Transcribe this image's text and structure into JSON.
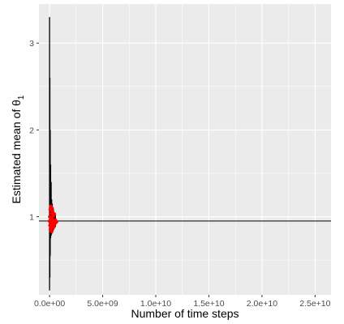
{
  "chart_data": {
    "type": "scatter",
    "title": "",
    "xlabel": "Number of time steps",
    "ylabel_main": "Estimated mean of θ",
    "ylabel_sub": "1",
    "xlim": [
      -1000000000,
      26500000000
    ],
    "ylim": [
      0.1,
      3.45
    ],
    "x_ticks": [
      0,
      5000000000,
      10000000000,
      15000000000,
      20000000000,
      25000000000
    ],
    "x_tick_labels": [
      "0.0e+00",
      "5.0e+09",
      "1.0e+10",
      "1.5e+10",
      "2.0e+10",
      "2.5e+10"
    ],
    "y_ticks": [
      1,
      2,
      3
    ],
    "y_tick_labels": [
      "1",
      "2",
      "3"
    ],
    "reference_line_y": 0.95,
    "grid": true,
    "legend": "none",
    "colors": {
      "panel": "#ebebeb",
      "grid_major": "#ffffff",
      "points": "#ff0000",
      "error_bars": "#000000",
      "reference_line": "#000000",
      "axis_text": "#4d4d4d"
    },
    "error_bars": [
      {
        "x": 0,
        "lo": 0.15,
        "hi": 3.3
      },
      {
        "x": 30000000,
        "lo": 0.3,
        "hi": 2.6
      },
      {
        "x": 60000000,
        "lo": 0.55,
        "hi": 2.0
      },
      {
        "x": 100000000,
        "lo": 0.75,
        "hi": 1.6
      },
      {
        "x": 150000000,
        "lo": 0.78,
        "hi": 1.4
      },
      {
        "x": 200000000,
        "lo": 0.8,
        "hi": 1.2
      },
      {
        "x": 260000000,
        "lo": 0.82,
        "hi": 1.15
      },
      {
        "x": 350000000,
        "lo": 0.84,
        "hi": 1.1
      },
      {
        "x": 450000000,
        "lo": 0.86,
        "hi": 1.05
      },
      {
        "x": 550000000,
        "lo": 0.88,
        "hi": 1.02
      }
    ],
    "points": [
      {
        "x": 0,
        "y": 0.95
      },
      {
        "x": 20000000,
        "y": 1.0
      },
      {
        "x": 40000000,
        "y": 0.9
      },
      {
        "x": 60000000,
        "y": 1.08
      },
      {
        "x": 80000000,
        "y": 0.85
      },
      {
        "x": 100000000,
        "y": 0.97
      },
      {
        "x": 120000000,
        "y": 1.12
      },
      {
        "x": 140000000,
        "y": 0.88
      },
      {
        "x": 160000000,
        "y": 1.04
      },
      {
        "x": 180000000,
        "y": 0.93
      },
      {
        "x": 200000000,
        "y": 0.83
      },
      {
        "x": 220000000,
        "y": 1.1
      },
      {
        "x": 240000000,
        "y": 0.98
      },
      {
        "x": 260000000,
        "y": 0.9
      },
      {
        "x": 290000000,
        "y": 1.06
      },
      {
        "x": 320000000,
        "y": 0.87
      },
      {
        "x": 350000000,
        "y": 1.01
      },
      {
        "x": 380000000,
        "y": 0.95
      },
      {
        "x": 410000000,
        "y": 0.89
      },
      {
        "x": 450000000,
        "y": 1.03
      },
      {
        "x": 500000000,
        "y": 0.92
      },
      {
        "x": 550000000,
        "y": 0.96
      },
      {
        "x": 650000000,
        "y": 0.94
      }
    ]
  }
}
